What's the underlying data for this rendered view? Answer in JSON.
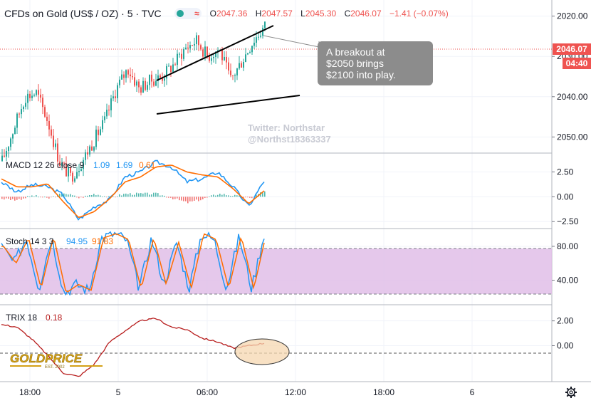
{
  "header": {
    "title": "CFDs on Gold (US$ / OZ) · 5 · TVC",
    "open_label": "O",
    "open": "2047.36",
    "high_label": "H",
    "high": "2047.57",
    "low_label": "L",
    "low": "2045.30",
    "close_label": "C",
    "close": "2046.07",
    "change": "−1.41 (−0.07%)"
  },
  "colors": {
    "up": "#26a69a",
    "down": "#ef5350",
    "macd": "#2196f3",
    "signal": "#ff6d00",
    "trix": "#b71c1c",
    "stoch_band": "#e1bee7",
    "annotation_bg": "#8c8c8c"
  },
  "watermark": {
    "line1": "Twitter: Northstar",
    "line2": "@Northst18363337"
  },
  "annotation": {
    "line1": "A breakout at",
    "line2": "$2050 brings",
    "line3": "$2100 into play."
  },
  "logo": {
    "text": "GOLDPRICE",
    "subtext": "EST. 2002"
  },
  "price_axis": {
    "labels": [
      "2050.00",
      "2040.00",
      "2030.00",
      "2020.00"
    ],
    "last_price_tag": "2046.07",
    "countdown_tag": "04:40"
  },
  "time_axis": {
    "labels": [
      "18:00",
      "5",
      "06:00",
      "12:00",
      "18:00",
      "6"
    ]
  },
  "chart_data": [
    {
      "type": "candlestick",
      "title": "CFDs on Gold (US$ / OZ) · 5 · TVC",
      "ylim": [
        2016,
        2054
      ],
      "yticks": [
        2020,
        2030,
        2040,
        2050
      ],
      "last_price": 2046.07,
      "close_path": [
        2014,
        2022,
        2030,
        2031,
        2024,
        2014,
        2010,
        2014,
        2019,
        2024,
        2032,
        2037,
        2032,
        2034,
        2035,
        2038,
        2042,
        2044,
        2040,
        2042,
        2034,
        2039,
        2044,
        2047.5
      ],
      "wedge_lines": [
        {
          "from": [
            72,
            2036
          ],
          "to": [
            124,
            2053
          ]
        },
        {
          "from": [
            72,
            2028
          ],
          "to": [
            136,
            2032
          ]
        }
      ]
    },
    {
      "type": "line",
      "title": "MACD 12 26 close 9",
      "legend_values": [
        "1.09",
        "1.69",
        "0.61"
      ],
      "ylim": [
        -3.2,
        4.4
      ],
      "yticks": [
        2.5,
        0.0,
        -2.5
      ],
      "ytick_labels": [
        "2.50",
        "0.00",
        "−2.50"
      ],
      "macd_path": [
        1.5,
        0.5,
        1.2,
        1.0,
        0.2,
        -2.3,
        -1.0,
        -0.3,
        2.0,
        2.5,
        3.5,
        3.0,
        1.5,
        1.8,
        2.5,
        1.0,
        -1.0,
        1.6
      ],
      "signal_path": [
        1.8,
        1.0,
        1.0,
        1.3,
        -0.5,
        -2.1,
        -1.5,
        -0.2,
        1.5,
        2.0,
        3.0,
        3.2,
        2.5,
        2.2,
        2.0,
        0.8,
        -0.7,
        0.6
      ]
    },
    {
      "type": "line",
      "title": "Stoch 14 3 3",
      "legend_values": [
        "94.95",
        "91.83"
      ],
      "ylim": [
        11,
        101
      ],
      "yticks": [
        80,
        40
      ],
      "ytick_labels": [
        "80.00",
        "40.00"
      ],
      "band": [
        20,
        80
      ]
    },
    {
      "type": "line",
      "title": "TRIX 18",
      "legend_values": [
        "0.18"
      ],
      "ylim": [
        -2.9,
        3.3
      ],
      "yticks": [
        2.0,
        0.0
      ],
      "ytick_labels": [
        "2.00",
        "0.00"
      ],
      "trix_path": [
        1.7,
        1.5,
        0.5,
        -0.8,
        -2.2,
        -2.5,
        -1.5,
        0.3,
        1.2,
        2.0,
        2.2,
        1.5,
        1.3,
        0.6,
        0.3,
        -0.2,
        0.0,
        0.2
      ]
    }
  ]
}
